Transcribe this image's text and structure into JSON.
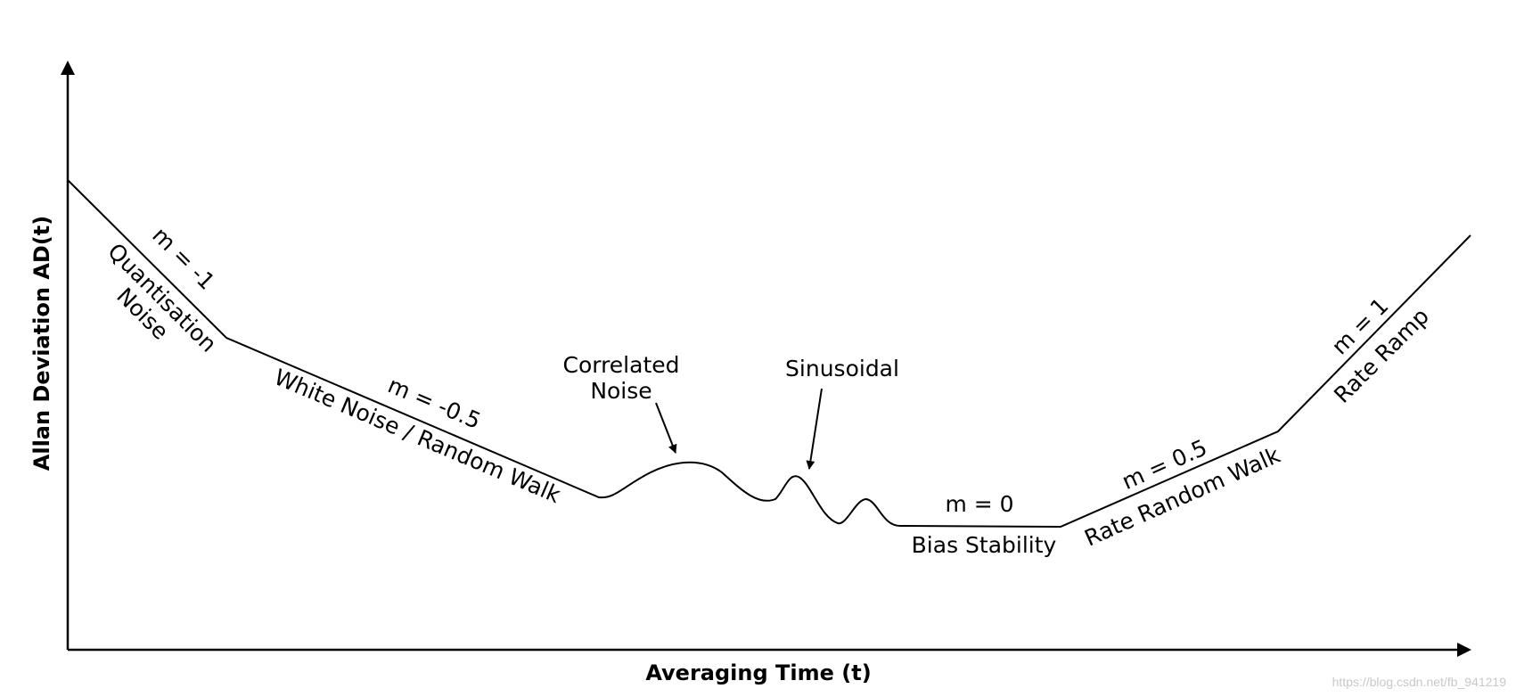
{
  "axes": {
    "x_title": "Averaging Time (t)",
    "y_title": "Allan Deviation AD(t)"
  },
  "segments": [
    {
      "slope": "m = -1",
      "name_lines": [
        "Quantisation",
        "Noise"
      ]
    },
    {
      "slope": "m = -0.5",
      "name": "White Noise / Random Walk"
    },
    {
      "slope": "m = 0",
      "name": "Bias Stability"
    },
    {
      "slope": "m = 0.5",
      "name": "Rate Random Walk"
    },
    {
      "slope": "m = 1",
      "name": "Rate Ramp"
    }
  ],
  "annotations": {
    "correlated_lines": [
      "Correlated",
      "Noise"
    ],
    "sinusoidal": "Sinusoidal"
  },
  "watermark": "https://blog.csdn.net/fb_941219",
  "colors": {
    "line": "#000000",
    "background": "#ffffff",
    "watermark": "#c8c8c8"
  }
}
